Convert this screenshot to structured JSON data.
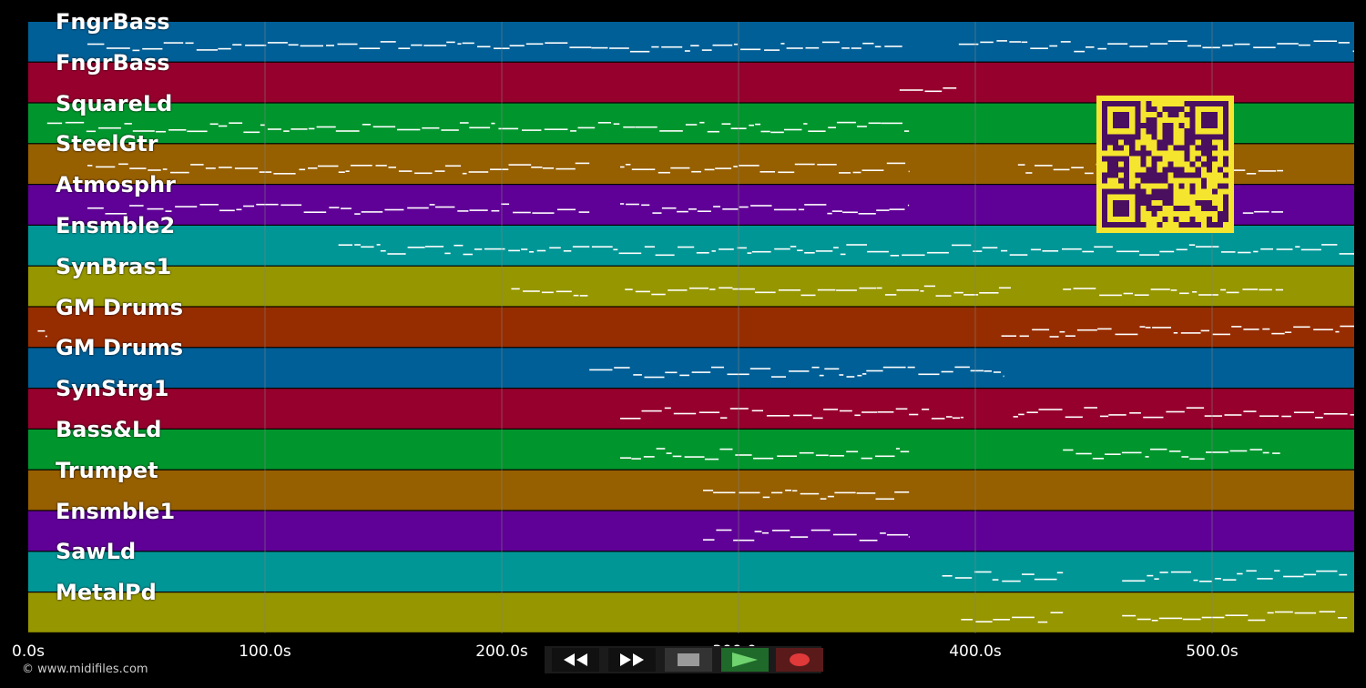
{
  "colors": {
    "background": "#000000",
    "grid": "#7f7f7f",
    "note": "#ffffff",
    "qr_bg": "#f5e52e",
    "qr_fg": "#4b0f5f",
    "track_palette": [
      "#005f96",
      "#96002d",
      "#00962d",
      "#965f00",
      "#5f0096",
      "#009696",
      "#969600",
      "#962d00"
    ]
  },
  "timeline": {
    "max_seconds": 560,
    "ticks": [
      {
        "value": 0,
        "label": "0.0s"
      },
      {
        "value": 100,
        "label": "100.0s"
      },
      {
        "value": 200,
        "label": "200.0s"
      },
      {
        "value": 300,
        "label": "300.0s"
      },
      {
        "value": 400,
        "label": "400.0s"
      },
      {
        "value": 500,
        "label": "500.0s"
      }
    ]
  },
  "tracks": [
    {
      "name": "FngrBass",
      "notes": [
        [
          25,
          370
        ],
        [
          393,
          560
        ]
      ]
    },
    {
      "name": "FngrBass",
      "notes": [
        [
          368,
          392
        ]
      ]
    },
    {
      "name": "SquareLd",
      "notes": [
        [
          8,
          372
        ]
      ]
    },
    {
      "name": "SteelGtr",
      "notes": [
        [
          25,
          237
        ],
        [
          250,
          372
        ],
        [
          418,
          424
        ],
        [
          425,
          530
        ]
      ]
    },
    {
      "name": "Atmosphr",
      "notes": [
        [
          25,
          237
        ],
        [
          250,
          372
        ],
        [
          513,
          530
        ]
      ]
    },
    {
      "name": "Ensmble2",
      "notes": [
        [
          131,
          560
        ]
      ]
    },
    {
      "name": "SynBras1",
      "notes": [
        [
          204,
          237
        ],
        [
          252,
          415
        ],
        [
          437,
          530
        ]
      ]
    },
    {
      "name": "GM Drums",
      "notes": [
        [
          4,
          8
        ],
        [
          411,
          560
        ]
      ]
    },
    {
      "name": "GM Drums",
      "notes": [
        [
          237,
          412
        ]
      ]
    },
    {
      "name": "SynStrg1",
      "notes": [
        [
          250,
          395
        ],
        [
          416,
          560
        ]
      ]
    },
    {
      "name": "Bass&Ld",
      "notes": [
        [
          250,
          372
        ],
        [
          437,
          530
        ]
      ]
    },
    {
      "name": "Trumpet",
      "notes": [
        [
          285,
          372
        ]
      ]
    },
    {
      "name": "Ensmble1",
      "notes": [
        [
          285,
          372
        ]
      ]
    },
    {
      "name": "SawLd",
      "notes": [
        [
          386,
          437
        ],
        [
          462,
          557
        ]
      ]
    },
    {
      "name": "MetalPd",
      "notes": [
        [
          394,
          437
        ],
        [
          462,
          557
        ]
      ]
    }
  ],
  "controls": {
    "rewind": "rewind-icon",
    "fast_forward": "fast-forward-icon",
    "stop": "stop-icon",
    "play": "play-icon",
    "record": "record-icon"
  },
  "footer": {
    "copyright": "© www.midifiles.com"
  }
}
